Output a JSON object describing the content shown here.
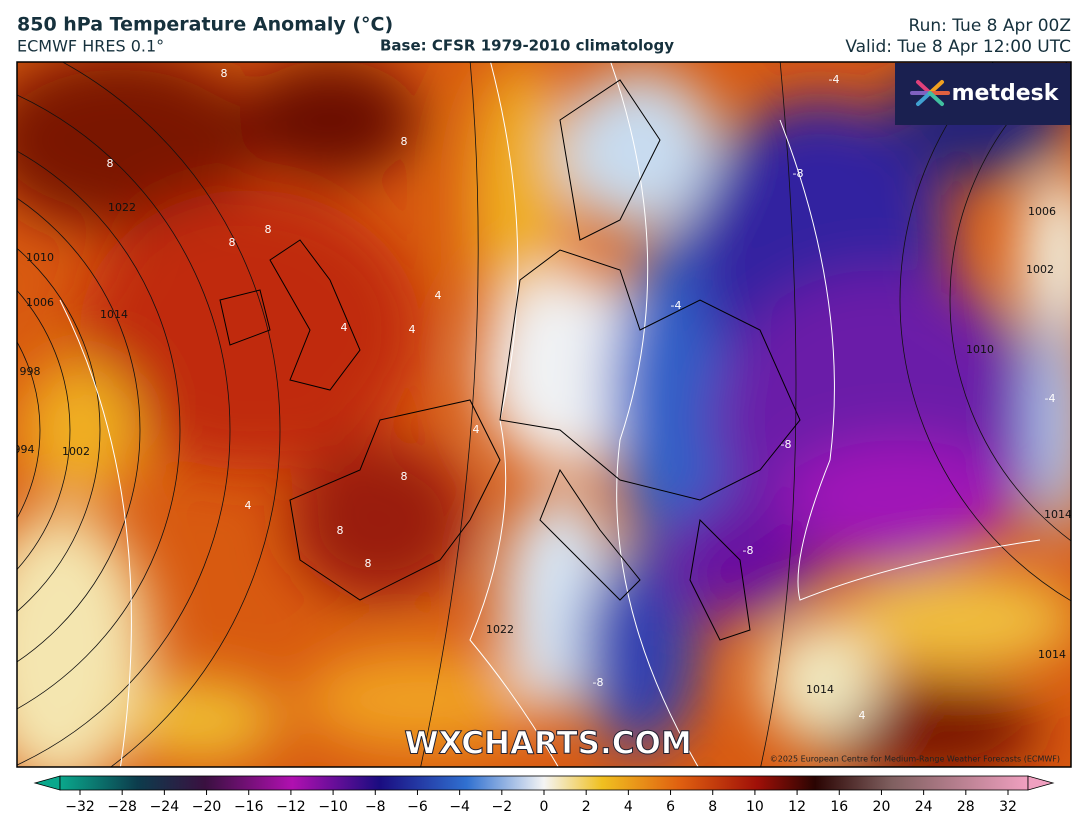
{
  "header": {
    "title": "850 hPa Temperature Anomaly (°C)",
    "model": "ECMWF HRES 0.1°",
    "base": "Base: CFSR 1979-2010 climatology",
    "run": "Run: Tue 8 Apr 00Z",
    "valid": "Valid: Tue 8 Apr 12:00 UTC"
  },
  "map": {
    "watermark": "WXCHARTS.COM",
    "logo": "metdesk",
    "copyright": "©2025 European Centre for Medium-Range Weather Forecasts (ECMWF)",
    "isobar_labels": [
      "1022",
      "1014",
      "1010",
      "1006",
      "998",
      "994",
      "1002",
      "1006",
      "1002",
      "1010",
      "1014",
      "1014",
      "1014",
      "1022"
    ],
    "anomaly_labels": [
      "8",
      "8",
      "8",
      "8",
      "8",
      "4",
      "4",
      "4",
      "4",
      "8",
      "8",
      "8",
      "-4",
      "-8",
      "-4",
      "-8",
      "-8",
      "-4",
      "-8",
      "4",
      "4"
    ]
  },
  "colorbar": {
    "ticks": [
      {
        "value": -32,
        "label": "−32"
      },
      {
        "value": -28,
        "label": "−28"
      },
      {
        "value": -24,
        "label": "−24"
      },
      {
        "value": -20,
        "label": "−20"
      },
      {
        "value": -16,
        "label": "−16"
      },
      {
        "value": -12,
        "label": "−12"
      },
      {
        "value": -10,
        "label": "−10"
      },
      {
        "value": -8,
        "label": "−8"
      },
      {
        "value": -6,
        "label": "−6"
      },
      {
        "value": -4,
        "label": "−4"
      },
      {
        "value": -2,
        "label": "−2"
      },
      0,
      2,
      4,
      6,
      8,
      10,
      12,
      16,
      20,
      24,
      28,
      32
    ]
  }
}
